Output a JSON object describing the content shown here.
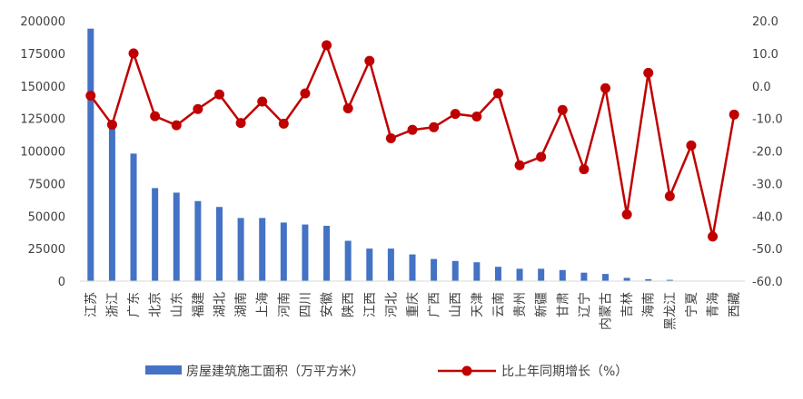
{
  "chart_data": {
    "type": "bar+line",
    "categories": [
      "江苏",
      "浙江",
      "广东",
      "北京",
      "山东",
      "福建",
      "湖北",
      "湖南",
      "上海",
      "河南",
      "四川",
      "安徽",
      "陕西",
      "江西",
      "河北",
      "重庆",
      "广西",
      "山西",
      "天津",
      "云南",
      "贵州",
      "新疆",
      "甘肃",
      "辽宁",
      "内蒙古",
      "吉林",
      "海南",
      "黑龙江",
      "宁夏",
      "青海",
      "西藏"
    ],
    "series": [
      {
        "name": "房屋建筑施工面积（万平方米）",
        "type": "bar",
        "axis": "left",
        "color": "#4472C4",
        "values": [
          194000,
          121000,
          98000,
          71500,
          68000,
          61500,
          57000,
          48500,
          48500,
          45000,
          43500,
          42500,
          31000,
          25000,
          25000,
          20500,
          17000,
          15500,
          14500,
          11000,
          9500,
          9500,
          8500,
          6500,
          5500,
          2500,
          1500,
          1000,
          200,
          100,
          100
        ]
      },
      {
        "name": "比上年同期增长（%）",
        "type": "line",
        "axis": "right",
        "color": "#C00000",
        "values": [
          -3.0,
          -11.9,
          10.0,
          -9.3,
          -12.1,
          -7.1,
          -2.6,
          -11.4,
          -4.8,
          -11.6,
          -2.3,
          12.5,
          -6.9,
          7.7,
          -16.1,
          -13.5,
          -12.7,
          -8.6,
          -9.4,
          -2.3,
          -24.4,
          -21.8,
          -7.4,
          -25.6,
          -0.7,
          -39.5,
          4.0,
          -33.9,
          -18.3,
          -46.3,
          -8.8
        ]
      }
    ],
    "y_left": {
      "min": 0,
      "max": 200000,
      "ticks": [
        "0",
        "25000",
        "50000",
        "75000",
        "100000",
        "125000",
        "150000",
        "175000",
        "200000"
      ]
    },
    "y_right": {
      "min": -60,
      "max": 20,
      "ticks": [
        "-60.0",
        "-50.0",
        "-40.0",
        "-30.0",
        "-20.0",
        "-10.0",
        "0.0",
        "10.0",
        "20.0"
      ]
    },
    "grid": false,
    "legend_position": "bottom"
  }
}
